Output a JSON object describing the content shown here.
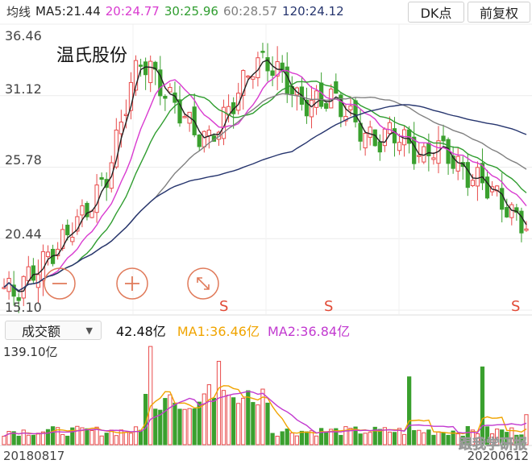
{
  "ma_header": {
    "label": "均线",
    "ma5": "MA5:21.44",
    "ma20": "20:24.77",
    "ma30": "30:25.96",
    "ma60": "60:28.57",
    "ma120": "120:24.12"
  },
  "buttons": {
    "dk": "DK点",
    "fq": "前复权"
  },
  "stock_name": "温氏股份",
  "price_axis": {
    "ticks": [
      "36.46",
      "31.12",
      "25.78",
      "20.44",
      "15.10"
    ]
  },
  "signal_marker": "S",
  "volume_header": {
    "selector": "成交额",
    "value": "42.48亿",
    "ma1": "MA1:36.46亿",
    "ma2": "MA2:36.84亿"
  },
  "volume_axis": {
    "max": "139.10亿"
  },
  "dates": {
    "start": "20180817",
    "end": "20200612"
  },
  "watermark": "跟我学研报",
  "colors": {
    "up": "#e84a4a",
    "down": "#3aa02e",
    "ma5": "#222222",
    "ma20": "#d93bd0",
    "ma30": "#2f9d2f",
    "ma60": "#808080",
    "ma120": "#26356e",
    "vol_ma1": "#f0a400",
    "vol_ma2": "#c23ad0",
    "signal": "#e14a36",
    "button_ring": "#e07a5a"
  },
  "chart_data": {
    "type": "candlestick",
    "title": "温氏股份",
    "x": [
      "20180817",
      "20200612"
    ],
    "ylim": [
      15.1,
      36.46
    ],
    "yticks": [
      36.46,
      31.12,
      25.78,
      20.44,
      15.1
    ],
    "close_approx": [
      16.8,
      16.3,
      17.5,
      18.3,
      19.2,
      20.0,
      21.4,
      22.2,
      23.5,
      25.0,
      28.0,
      31.5,
      33.8,
      33.0,
      31.5,
      30.5,
      29.4,
      28.2,
      27.8,
      29.0,
      30.3,
      32.0,
      33.5,
      33.7,
      33.0,
      32.0,
      30.5,
      30.5,
      30.8,
      31.0,
      30.0,
      29.0,
      28.0,
      27.6,
      28.5,
      28.0,
      27.0,
      26.4,
      27.5,
      26.8,
      25.8,
      25.0,
      24.8,
      24.0,
      23.0,
      22.0,
      21.44
    ],
    "series": [
      {
        "name": "MA5",
        "last": 21.44
      },
      {
        "name": "MA20",
        "last": 24.77
      },
      {
        "name": "MA30",
        "last": 25.96
      },
      {
        "name": "MA60",
        "last": 28.57
      },
      {
        "name": "MA120",
        "last": 24.12
      }
    ],
    "volume": {
      "unit": "亿",
      "ymax": 139.1,
      "last": 42.48,
      "ma1_last": 36.46,
      "ma2_last": 36.84
    }
  }
}
